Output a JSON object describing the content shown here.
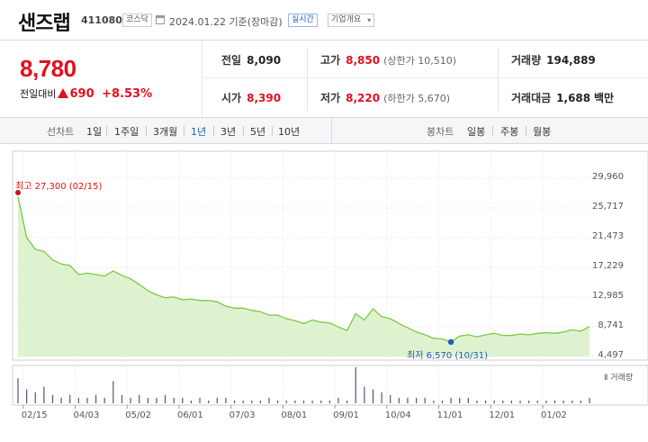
{
  "header": {
    "name": "샌즈랩",
    "code": "411080",
    "market": "코스닥",
    "date": "2024.01.22",
    "basis": "기준(장마감)",
    "realtime_label": "실시간",
    "company_label": "기업개요"
  },
  "price": {
    "current": "8,780",
    "change_label": "전일대비",
    "change": "690",
    "change_pct": "+8.53%",
    "colors": {
      "up": "#e3101e",
      "down": "#1e5db5"
    }
  },
  "stats": {
    "prev_close": {
      "label": "전일",
      "value": "8,090"
    },
    "high": {
      "label": "고가",
      "value": "8,850",
      "sub_label": "상한가",
      "sub_value": "10,510"
    },
    "volume": {
      "label": "거래량",
      "value": "194,889"
    },
    "open": {
      "label": "시가",
      "value": "8,390"
    },
    "low": {
      "label": "저가",
      "value": "8,220",
      "sub_label": "하한가",
      "sub_value": "5,670"
    },
    "amount": {
      "label": "거래대금",
      "value": "1,688",
      "unit": "백만"
    }
  },
  "toolbar": {
    "line_label": "선차트",
    "line_periods": [
      "1일",
      "1주일",
      "3개월",
      "1년",
      "3년",
      "5년",
      "10년"
    ],
    "active_period": "1년",
    "candle_label": "봉차트",
    "candle_periods": [
      "일봉",
      "주봉",
      "월봉"
    ]
  },
  "chart_data": {
    "type": "area",
    "y_ticks": [
      "29,960",
      "25,717",
      "21,473",
      "17,229",
      "12,985",
      "8,741",
      "4,497"
    ],
    "ylim": [
      4497,
      29960
    ],
    "x_ticks": [
      "02/15",
      "04/03",
      "05/02",
      "06/01",
      "07/03",
      "08/01",
      "09/01",
      "10/04",
      "11/01",
      "12/01",
      "01/02"
    ],
    "high_annotation": "최고 27,300 (02/15)",
    "low_annotation": "최저 6,570 (10/31)",
    "volume_label": "거래량",
    "grid": true,
    "colors": {
      "line": "#7ac943",
      "fill": "#dff2cf",
      "high": "#d11111",
      "low": "#1e5db5",
      "volume": "#555577"
    },
    "series": [
      {
        "values": [
          27300,
          21500,
          19800,
          19500,
          18300,
          17700,
          17500,
          16200,
          16400,
          16200,
          16000,
          16700,
          16100,
          15600,
          14800,
          13900,
          13300,
          12900,
          13000,
          12600,
          12700,
          12500,
          12500,
          12300,
          11700,
          11400,
          11400,
          11100,
          10900,
          10400,
          10400,
          9900,
          9600,
          9200,
          9700,
          9400,
          9300,
          8700,
          8200,
          10600,
          9700,
          11300,
          10200,
          9900,
          9200,
          8600,
          8000,
          7600,
          7100,
          7000,
          6570,
          7400,
          7600,
          7300,
          7600,
          7800,
          7500,
          7500,
          7700,
          7600,
          7800,
          7900,
          7800,
          8000,
          8300,
          8100,
          8780
        ]
      }
    ],
    "volume": [
      9,
      5,
      4,
      6,
      3,
      2,
      3,
      2,
      2,
      3,
      2,
      8,
      3,
      2,
      3,
      2,
      2,
      3,
      2,
      2,
      1,
      2,
      1,
      2,
      2,
      1,
      1,
      1,
      1,
      2,
      1,
      1,
      1,
      1,
      1,
      1,
      1,
      2,
      1,
      13,
      6,
      5,
      4,
      3,
      2,
      2,
      2,
      2,
      1,
      1,
      2,
      2,
      2,
      1,
      1,
      1,
      1,
      1,
      1,
      1,
      1,
      1,
      1,
      1,
      1,
      1,
      2
    ]
  }
}
